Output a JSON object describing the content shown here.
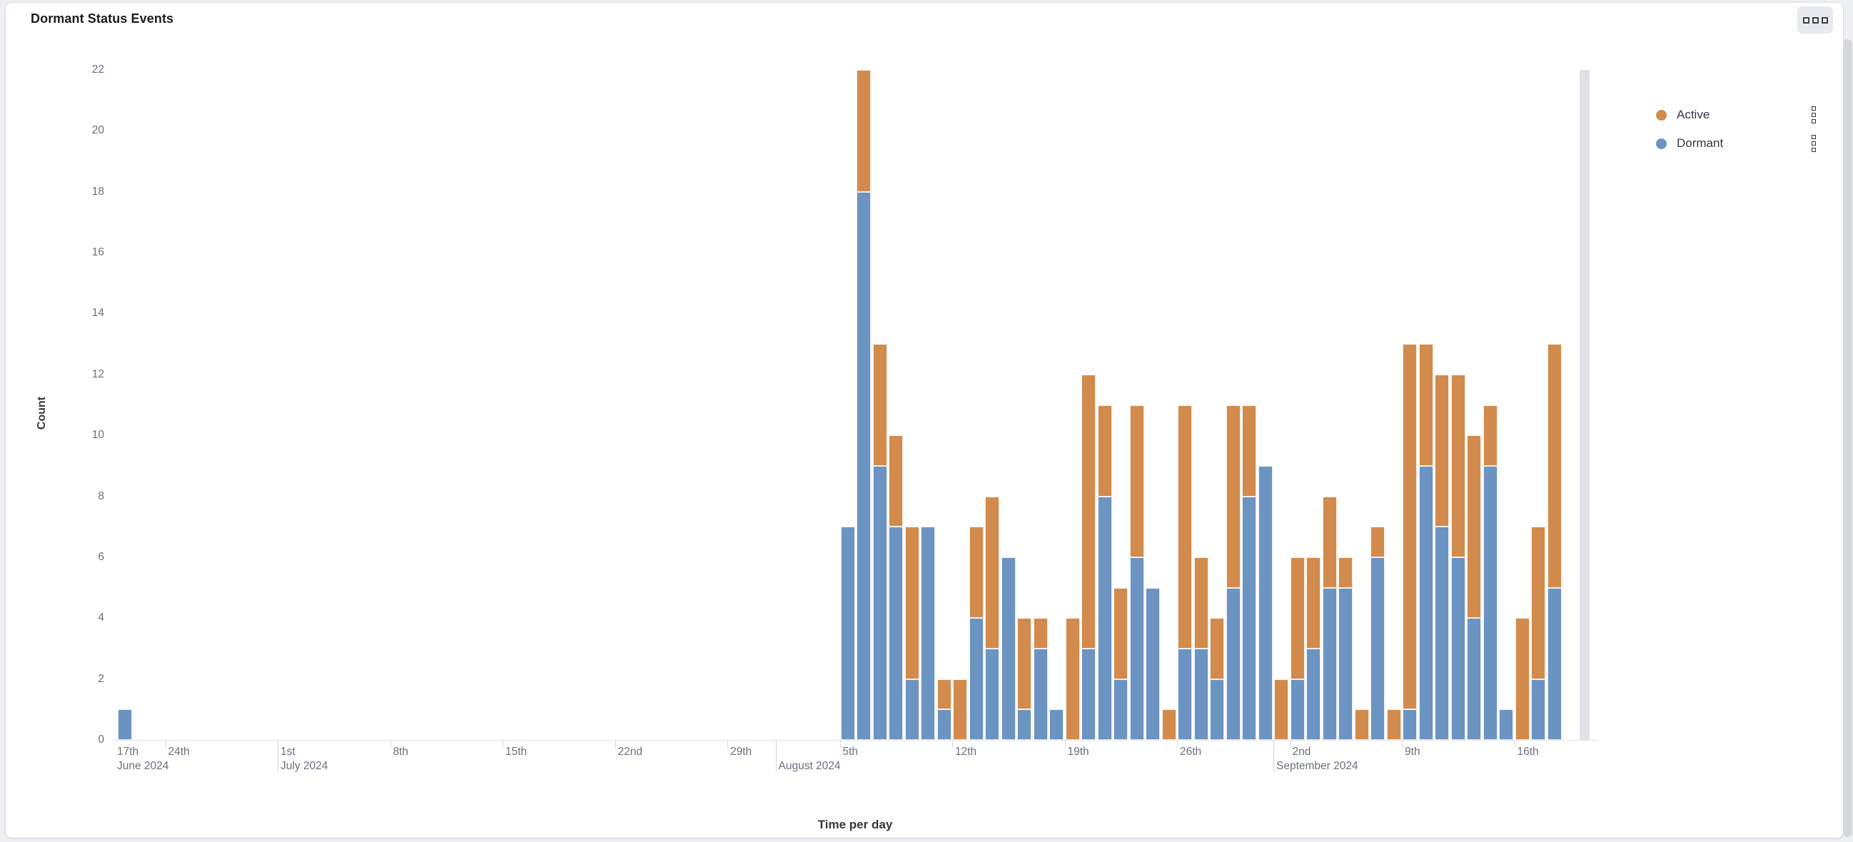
{
  "panel": {
    "title": "Dormant Status Events",
    "menu_icon": "panel-options-icon"
  },
  "legend": {
    "position": "right",
    "items": [
      {
        "label": "Active",
        "color": "#d28b4c",
        "action_icon": "legend-options-icon"
      },
      {
        "label": "Dormant",
        "color": "#6b94c2",
        "action_icon": "legend-options-icon"
      }
    ]
  },
  "chart_data": {
    "type": "bar",
    "stacked": true,
    "title": "Dormant Status Events",
    "xlabel": "Time per day",
    "ylabel": "Count",
    "ylim": [
      0,
      22
    ],
    "y_tick_step": 2,
    "grid": false,
    "legend_position": "right",
    "x_unit": "day",
    "dates": [
      "2024-06-21",
      "2024-08-05",
      "2024-08-06",
      "2024-08-07",
      "2024-08-08",
      "2024-08-09",
      "2024-08-10",
      "2024-08-11",
      "2024-08-12",
      "2024-08-13",
      "2024-08-14",
      "2024-08-15",
      "2024-08-16",
      "2024-08-17",
      "2024-08-18",
      "2024-08-19",
      "2024-08-20",
      "2024-08-21",
      "2024-08-22",
      "2024-08-23",
      "2024-08-24",
      "2024-08-25",
      "2024-08-26",
      "2024-08-27",
      "2024-08-28",
      "2024-08-29",
      "2024-08-30",
      "2024-08-31",
      "2024-09-01",
      "2024-09-02",
      "2024-09-03",
      "2024-09-04",
      "2024-09-05",
      "2024-09-06",
      "2024-09-07",
      "2024-09-08",
      "2024-09-09",
      "2024-09-10",
      "2024-09-11",
      "2024-09-12",
      "2024-09-13",
      "2024-09-14",
      "2024-09-15",
      "2024-09-16",
      "2024-09-17",
      "2024-09-18"
    ],
    "series": [
      {
        "name": "Dormant",
        "color": "#6b94c2",
        "stack_order": 0,
        "values": [
          1,
          7,
          18,
          9,
          7,
          2,
          7,
          1,
          0,
          4,
          3,
          6,
          1,
          3,
          1,
          0,
          3,
          8,
          2,
          6,
          5,
          0,
          3,
          3,
          2,
          5,
          8,
          9,
          0,
          2,
          3,
          5,
          5,
          0,
          6,
          0,
          1,
          9,
          7,
          6,
          4,
          9,
          1,
          0,
          2,
          5
        ]
      },
      {
        "name": "Active",
        "color": "#d28b4c",
        "stack_order": 1,
        "values": [
          0,
          0,
          4,
          4,
          3,
          5,
          0,
          1,
          2,
          3,
          5,
          0,
          3,
          1,
          0,
          4,
          9,
          3,
          3,
          5,
          0,
          1,
          8,
          3,
          2,
          6,
          3,
          0,
          2,
          4,
          3,
          3,
          1,
          1,
          1,
          1,
          12,
          4,
          5,
          6,
          6,
          2,
          0,
          4,
          5,
          8
        ]
      }
    ],
    "x_week_ticks": [
      {
        "label": "17th",
        "offset": -14
      },
      {
        "label": "24th",
        "offset": -7
      },
      {
        "label": "1st",
        "offset": 0
      },
      {
        "label": "8th",
        "offset": 7
      },
      {
        "label": "15th",
        "offset": 14
      },
      {
        "label": "22nd",
        "offset": 21
      },
      {
        "label": "29th",
        "offset": 28
      },
      {
        "label": "5th",
        "offset": 35
      },
      {
        "label": "12th",
        "offset": 42
      },
      {
        "label": "19th",
        "offset": 49
      },
      {
        "label": "26th",
        "offset": 56
      },
      {
        "label": "2nd",
        "offset": 63
      },
      {
        "label": "9th",
        "offset": 70
      },
      {
        "label": "16th",
        "offset": 77
      }
    ],
    "x_month_labels": [
      {
        "label": "June 2024",
        "offset": -14
      },
      {
        "label": "July 2024",
        "offset": 0
      },
      {
        "label": "August 2024",
        "offset": 31
      },
      {
        "label": "September 2024",
        "offset": 62
      }
    ],
    "partial_bucket_marker": {
      "present": true,
      "color": "#e0e1e6"
    }
  }
}
